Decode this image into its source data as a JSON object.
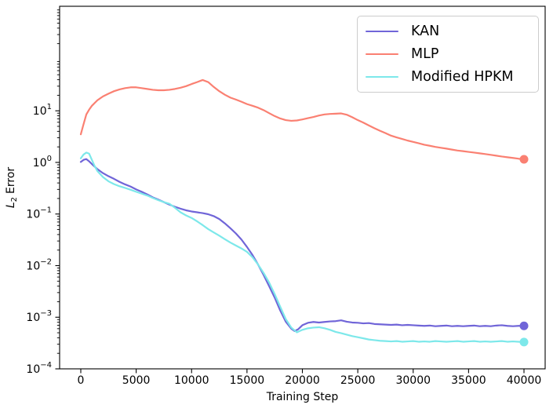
{
  "chart_data": {
    "type": "line",
    "title": "",
    "xlabel": "Training Step",
    "ylabel": {
      "symbol": "L",
      "subscript": "2",
      "text": "Error"
    },
    "y_scale": "log",
    "grid": false,
    "legend_position": "upper right",
    "xlim": [
      -1911,
      41911
    ],
    "ylim": [
      0.0001,
      1060
    ],
    "x_ticks": [
      0,
      5000,
      10000,
      15000,
      20000,
      25000,
      30000,
      35000,
      40000
    ],
    "y_tick_exponents": [
      1,
      0,
      -1,
      -2,
      -3,
      -4
    ],
    "series": [
      {
        "name": "KAN",
        "color": "#7065d8",
        "end_marker": true,
        "final_value": 0.00068,
        "points": [
          [
            0,
            1.02
          ],
          [
            250,
            1.12
          ],
          [
            500,
            1.16
          ],
          [
            750,
            1.05
          ],
          [
            1000,
            0.93
          ],
          [
            1500,
            0.74
          ],
          [
            2000,
            0.62
          ],
          [
            2500,
            0.54
          ],
          [
            3000,
            0.48
          ],
          [
            3500,
            0.42
          ],
          [
            4000,
            0.375
          ],
          [
            4500,
            0.34
          ],
          [
            5000,
            0.3
          ],
          [
            5500,
            0.27
          ],
          [
            6000,
            0.24
          ],
          [
            6500,
            0.21
          ],
          [
            7000,
            0.19
          ],
          [
            7500,
            0.17
          ],
          [
            8000,
            0.152
          ],
          [
            8500,
            0.138
          ],
          [
            9000,
            0.127
          ],
          [
            9500,
            0.118
          ],
          [
            10000,
            0.112
          ],
          [
            10500,
            0.108
          ],
          [
            11000,
            0.104
          ],
          [
            11500,
            0.099
          ],
          [
            12000,
            0.091
          ],
          [
            12500,
            0.08
          ],
          [
            13000,
            0.066
          ],
          [
            13500,
            0.053
          ],
          [
            14000,
            0.042
          ],
          [
            14500,
            0.032
          ],
          [
            15000,
            0.023
          ],
          [
            15500,
            0.016
          ],
          [
            16000,
            0.0105
          ],
          [
            16500,
            0.0066
          ],
          [
            17000,
            0.004
          ],
          [
            17500,
            0.0024
          ],
          [
            18000,
            0.00135
          ],
          [
            18500,
            0.00082
          ],
          [
            19000,
            0.0006
          ],
          [
            19300,
            0.00054
          ],
          [
            19600,
            0.00058
          ],
          [
            20000,
            0.0007
          ],
          [
            20500,
            0.00078
          ],
          [
            21000,
            0.00081
          ],
          [
            21500,
            0.00079
          ],
          [
            22000,
            0.00081
          ],
          [
            22500,
            0.00083
          ],
          [
            23000,
            0.00084
          ],
          [
            23500,
            0.00087
          ],
          [
            24000,
            0.00082
          ],
          [
            24500,
            0.00079
          ],
          [
            25000,
            0.00078
          ],
          [
            25500,
            0.00076
          ],
          [
            26000,
            0.00077
          ],
          [
            26500,
            0.00074
          ],
          [
            27000,
            0.00073
          ],
          [
            27500,
            0.00072
          ],
          [
            28000,
            0.00071
          ],
          [
            28500,
            0.00072
          ],
          [
            29000,
            0.0007
          ],
          [
            29500,
            0.00071
          ],
          [
            30000,
            0.0007
          ],
          [
            30500,
            0.00069
          ],
          [
            31000,
            0.00068
          ],
          [
            31500,
            0.00069
          ],
          [
            32000,
            0.00067
          ],
          [
            32500,
            0.00068
          ],
          [
            33000,
            0.00069
          ],
          [
            33500,
            0.00067
          ],
          [
            34000,
            0.00068
          ],
          [
            34500,
            0.00067
          ],
          [
            35000,
            0.00068
          ],
          [
            35500,
            0.00069
          ],
          [
            36000,
            0.00067
          ],
          [
            36500,
            0.00068
          ],
          [
            37000,
            0.00067
          ],
          [
            37500,
            0.00069
          ],
          [
            38000,
            0.0007
          ],
          [
            38500,
            0.00068
          ],
          [
            39000,
            0.00067
          ],
          [
            39500,
            0.00068
          ],
          [
            40000,
            0.00068
          ]
        ]
      },
      {
        "name": "MLP",
        "color": "#fa8072",
        "end_marker": true,
        "final_value": 1.15,
        "points": [
          [
            0,
            3.5
          ],
          [
            250,
            5.5
          ],
          [
            500,
            8.5
          ],
          [
            750,
            10.5
          ],
          [
            1000,
            12.5
          ],
          [
            1500,
            16
          ],
          [
            2000,
            19
          ],
          [
            2500,
            21.5
          ],
          [
            3000,
            24
          ],
          [
            3500,
            26
          ],
          [
            4000,
            27.5
          ],
          [
            4500,
            28.5
          ],
          [
            5000,
            28.5
          ],
          [
            5500,
            27.5
          ],
          [
            6000,
            26.5
          ],
          [
            6500,
            25.5
          ],
          [
            7000,
            25
          ],
          [
            7500,
            25
          ],
          [
            8000,
            25.5
          ],
          [
            8500,
            26.5
          ],
          [
            9000,
            28
          ],
          [
            9500,
            30
          ],
          [
            10000,
            33
          ],
          [
            10500,
            36
          ],
          [
            11000,
            39.5
          ],
          [
            11500,
            36
          ],
          [
            12000,
            29
          ],
          [
            12500,
            24
          ],
          [
            13000,
            20.5
          ],
          [
            13500,
            18
          ],
          [
            14000,
            16.5
          ],
          [
            14500,
            15
          ],
          [
            15000,
            13.5
          ],
          [
            15500,
            12.5
          ],
          [
            16000,
            11.5
          ],
          [
            16500,
            10.3
          ],
          [
            17000,
            9.0
          ],
          [
            17500,
            7.9
          ],
          [
            18000,
            7.1
          ],
          [
            18500,
            6.6
          ],
          [
            19000,
            6.4
          ],
          [
            19500,
            6.5
          ],
          [
            20000,
            6.8
          ],
          [
            20500,
            7.2
          ],
          [
            21000,
            7.6
          ],
          [
            21500,
            8.1
          ],
          [
            22000,
            8.5
          ],
          [
            22500,
            8.7
          ],
          [
            23000,
            8.8
          ],
          [
            23500,
            8.9
          ],
          [
            24000,
            8.4
          ],
          [
            24500,
            7.5
          ],
          [
            25000,
            6.6
          ],
          [
            25500,
            5.9
          ],
          [
            26000,
            5.2
          ],
          [
            26500,
            4.6
          ],
          [
            27000,
            4.1
          ],
          [
            27500,
            3.7
          ],
          [
            28000,
            3.3
          ],
          [
            28500,
            3.05
          ],
          [
            29000,
            2.85
          ],
          [
            29500,
            2.65
          ],
          [
            30000,
            2.5
          ],
          [
            30500,
            2.35
          ],
          [
            31000,
            2.2
          ],
          [
            31500,
            2.1
          ],
          [
            32000,
            2.0
          ],
          [
            32500,
            1.92
          ],
          [
            33000,
            1.85
          ],
          [
            33500,
            1.77
          ],
          [
            34000,
            1.7
          ],
          [
            34500,
            1.65
          ],
          [
            35000,
            1.6
          ],
          [
            35500,
            1.55
          ],
          [
            36000,
            1.5
          ],
          [
            36500,
            1.45
          ],
          [
            37000,
            1.4
          ],
          [
            37500,
            1.35
          ],
          [
            38000,
            1.3
          ],
          [
            38500,
            1.26
          ],
          [
            39000,
            1.22
          ],
          [
            39500,
            1.18
          ],
          [
            40000,
            1.15
          ]
        ]
      },
      {
        "name": "Modified HPKM",
        "color": "#7de8ea",
        "end_marker": true,
        "final_value": 0.00033,
        "points": [
          [
            0,
            1.2
          ],
          [
            250,
            1.42
          ],
          [
            500,
            1.55
          ],
          [
            750,
            1.48
          ],
          [
            1000,
            1.12
          ],
          [
            1250,
            0.85
          ],
          [
            1500,
            0.68
          ],
          [
            2000,
            0.52
          ],
          [
            2500,
            0.43
          ],
          [
            3000,
            0.38
          ],
          [
            3500,
            0.345
          ],
          [
            4000,
            0.32
          ],
          [
            4500,
            0.295
          ],
          [
            5000,
            0.27
          ],
          [
            5500,
            0.248
          ],
          [
            6000,
            0.228
          ],
          [
            6500,
            0.205
          ],
          [
            7000,
            0.185
          ],
          [
            7500,
            0.17
          ],
          [
            8000,
            0.158
          ],
          [
            8500,
            0.132
          ],
          [
            9000,
            0.108
          ],
          [
            9500,
            0.094
          ],
          [
            10000,
            0.084
          ],
          [
            10500,
            0.072
          ],
          [
            11000,
            0.061
          ],
          [
            11500,
            0.051
          ],
          [
            12000,
            0.044
          ],
          [
            12500,
            0.038
          ],
          [
            13000,
            0.0325
          ],
          [
            13500,
            0.028
          ],
          [
            14000,
            0.0245
          ],
          [
            14500,
            0.0215
          ],
          [
            15000,
            0.0185
          ],
          [
            15500,
            0.0145
          ],
          [
            16000,
            0.0105
          ],
          [
            16500,
            0.0072
          ],
          [
            17000,
            0.0047
          ],
          [
            17500,
            0.0028
          ],
          [
            18000,
            0.0016
          ],
          [
            18500,
            0.00092
          ],
          [
            19000,
            0.00063
          ],
          [
            19500,
            0.00051
          ],
          [
            20000,
            0.00057
          ],
          [
            20500,
            0.00061
          ],
          [
            21000,
            0.00063
          ],
          [
            21500,
            0.00064
          ],
          [
            22000,
            0.00061
          ],
          [
            22500,
            0.00057
          ],
          [
            23000,
            0.00052
          ],
          [
            23500,
            0.00049
          ],
          [
            24000,
            0.00046
          ],
          [
            24500,
            0.00043
          ],
          [
            25000,
            0.00041
          ],
          [
            25500,
            0.00039
          ],
          [
            26000,
            0.00037
          ],
          [
            26500,
            0.00036
          ],
          [
            27000,
            0.00035
          ],
          [
            27500,
            0.000345
          ],
          [
            28000,
            0.00034
          ],
          [
            28500,
            0.000345
          ],
          [
            29000,
            0.000335
          ],
          [
            29500,
            0.00034
          ],
          [
            30000,
            0.000345
          ],
          [
            30500,
            0.000335
          ],
          [
            31000,
            0.00034
          ],
          [
            31500,
            0.000335
          ],
          [
            32000,
            0.000345
          ],
          [
            32500,
            0.00034
          ],
          [
            33000,
            0.000335
          ],
          [
            33500,
            0.00034
          ],
          [
            34000,
            0.000345
          ],
          [
            34500,
            0.000335
          ],
          [
            35000,
            0.00034
          ],
          [
            35500,
            0.000345
          ],
          [
            36000,
            0.000335
          ],
          [
            36500,
            0.00034
          ],
          [
            37000,
            0.000335
          ],
          [
            37500,
            0.00034
          ],
          [
            38000,
            0.000345
          ],
          [
            38500,
            0.000335
          ],
          [
            39000,
            0.00034
          ],
          [
            39500,
            0.000335
          ],
          [
            40000,
            0.00033
          ]
        ]
      }
    ]
  }
}
